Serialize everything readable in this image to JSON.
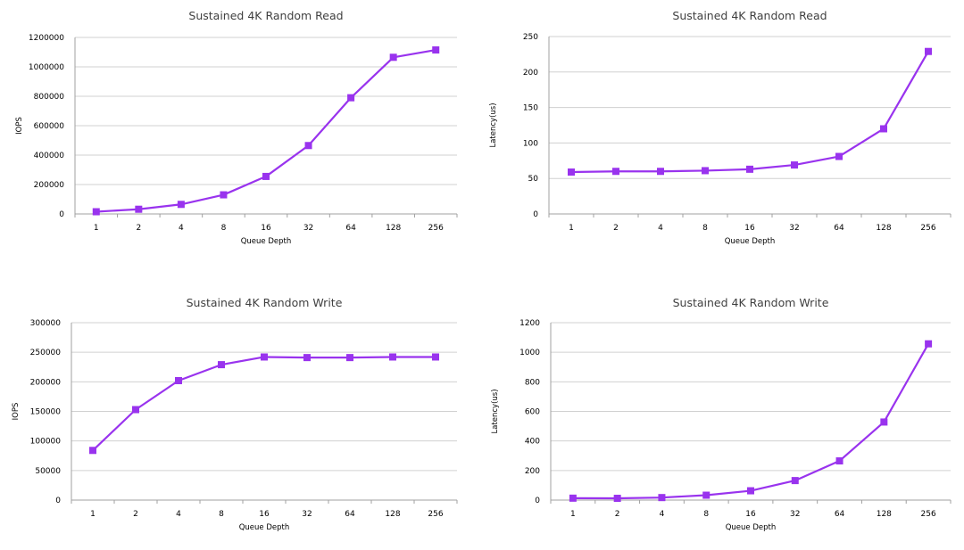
{
  "chart_data": [
    {
      "type": "line",
      "title": "Sustained 4K Random Read",
      "xlabel": "Queue Depth",
      "ylabel": "IOPS",
      "categories": [
        "1",
        "2",
        "4",
        "8",
        "16",
        "32",
        "64",
        "128",
        "256"
      ],
      "ylim": [
        0,
        1200000
      ],
      "yticks": [
        0,
        200000,
        400000,
        600000,
        800000,
        1000000,
        1200000
      ],
      "series": [
        {
          "name": "IOPS",
          "color": "#9933ee",
          "values": [
            15000,
            32000,
            65000,
            130000,
            255000,
            465000,
            790000,
            1065000,
            1115000
          ]
        }
      ]
    },
    {
      "type": "line",
      "title": "Sustained 4K Random Read",
      "xlabel": "Queue Depth",
      "ylabel": "Latency(us)",
      "categories": [
        "1",
        "2",
        "4",
        "8",
        "16",
        "32",
        "64",
        "128",
        "256"
      ],
      "ylim": [
        0,
        250
      ],
      "yticks": [
        0,
        50,
        100,
        150,
        200,
        250
      ],
      "series": [
        {
          "name": "Latency",
          "color": "#9933ee",
          "values": [
            59,
            60,
            60,
            61,
            63,
            69,
            81,
            120,
            229
          ]
        }
      ]
    },
    {
      "type": "line",
      "title": "Sustained 4K Random Write",
      "xlabel": "Queue Depth",
      "ylabel": "IOPS",
      "categories": [
        "1",
        "2",
        "4",
        "8",
        "16",
        "32",
        "64",
        "128",
        "256"
      ],
      "ylim": [
        0,
        300000
      ],
      "yticks": [
        0,
        50000,
        100000,
        150000,
        200000,
        250000,
        300000
      ],
      "series": [
        {
          "name": "IOPS",
          "color": "#9933ee",
          "values": [
            84000,
            153000,
            202000,
            229000,
            242000,
            241000,
            241000,
            242000,
            242000
          ]
        }
      ]
    },
    {
      "type": "line",
      "title": "Sustained 4K Random Write",
      "xlabel": "Queue Depth",
      "ylabel": "Latency(us)",
      "categories": [
        "1",
        "2",
        "4",
        "8",
        "16",
        "32",
        "64",
        "128",
        "256"
      ],
      "ylim": [
        0,
        1200
      ],
      "yticks": [
        0,
        200,
        400,
        600,
        800,
        1000,
        1200
      ],
      "series": [
        {
          "name": "Latency",
          "color": "#9933ee",
          "values": [
            13,
            12,
            17,
            33,
            63,
            132,
            265,
            528,
            1057
          ]
        }
      ]
    }
  ]
}
